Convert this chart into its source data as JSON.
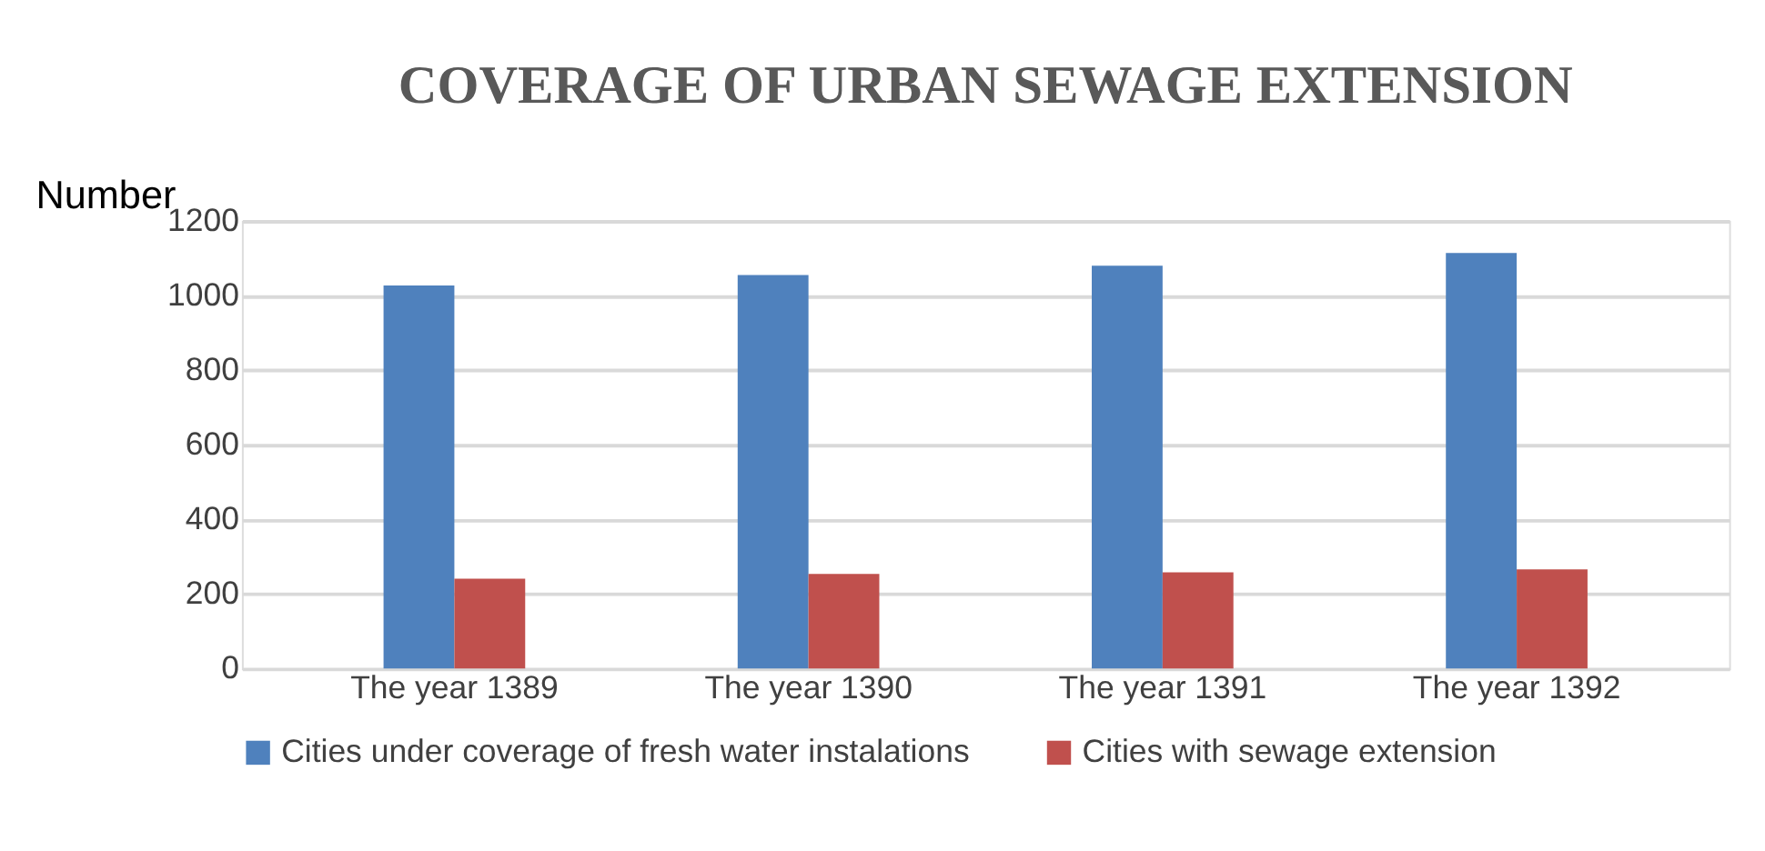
{
  "chart_data": {
    "type": "bar",
    "title": "COVERAGE OF URBAN SEWAGE EXTENSION",
    "ylabel": "Number",
    "categories": [
      "The year  1389",
      "The year  1390",
      "The year  1391",
      "The year  1392"
    ],
    "series": [
      {
        "name": "Cities under coverage of fresh water instalations",
        "color": "#4f81bd",
        "values": [
          1027,
          1055,
          1080,
          1114
        ]
      },
      {
        "name": "Cities with sewage extension",
        "color": "#c0504d",
        "values": [
          241,
          254,
          258,
          266
        ]
      }
    ],
    "ylim": [
      0,
      1200
    ],
    "yticks": [
      0,
      200,
      400,
      600,
      800,
      1000,
      1200
    ],
    "grid": "y",
    "legend": "bottom"
  }
}
